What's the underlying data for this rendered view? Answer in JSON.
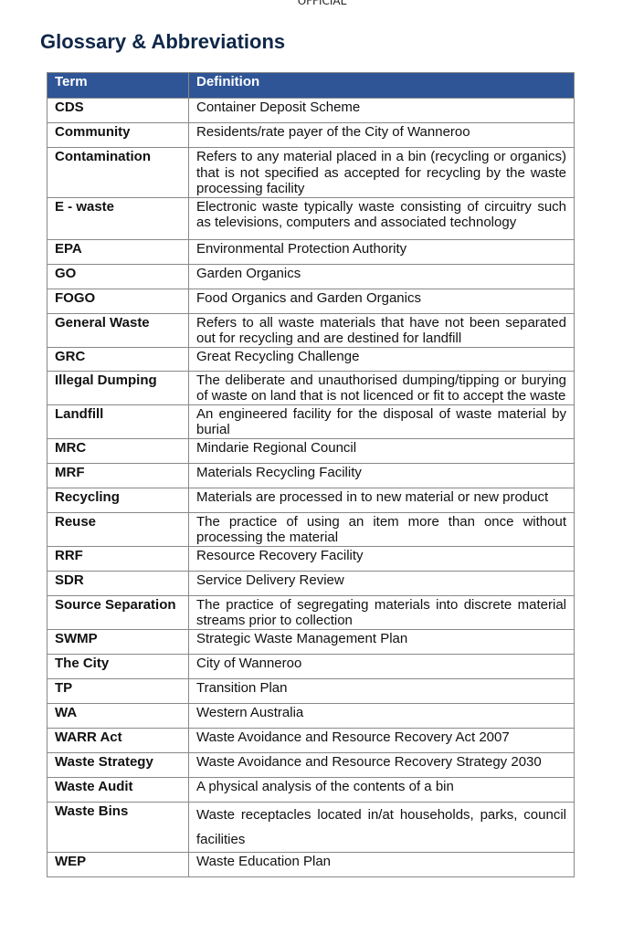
{
  "header": {
    "label": "OFFICIAL"
  },
  "page_title": "Glossary & Abbreviations",
  "table": {
    "columns": [
      "Term",
      "Definition"
    ],
    "rows": [
      {
        "term": "CDS",
        "definition": "Container Deposit Scheme"
      },
      {
        "term": "Community",
        "definition": "Residents/rate payer of the City of Wanneroo"
      },
      {
        "term": "Contamination",
        "definition": "Refers to any material placed in a bin (recycling or organics) that is not specified as accepted for recycling by the waste processing facility"
      },
      {
        "term": "E - waste",
        "definition": "Electronic waste typically waste consisting of circuitry such as televisions, computers and associated technology"
      },
      {
        "term": "EPA",
        "definition": "Environmental Protection Authority"
      },
      {
        "term": "GO",
        "definition": "Garden Organics"
      },
      {
        "term": "FOGO",
        "definition": "Food Organics and Garden Organics"
      },
      {
        "term": "General Waste",
        "definition": "Refers to all waste materials that have not been separated out for recycling and are destined for landfill"
      },
      {
        "term": "GRC",
        "definition": "Great Recycling Challenge"
      },
      {
        "term": "Illegal Dumping",
        "definition": "The deliberate and unauthorised dumping/tipping or burying of waste on land that is not licenced or fit to accept the waste"
      },
      {
        "term": "Landfill",
        "definition": "An engineered facility for the disposal of waste material by burial"
      },
      {
        "term": "MRC",
        "definition": "Mindarie Regional Council"
      },
      {
        "term": "MRF",
        "definition": "Materials Recycling Facility"
      },
      {
        "term": "Recycling",
        "definition": "Materials are processed in to new material or new product"
      },
      {
        "term": "Reuse",
        "definition": "The practice of using an item more than once without processing the material"
      },
      {
        "term": "RRF",
        "definition": "Resource Recovery Facility"
      },
      {
        "term": "SDR",
        "definition": "Service Delivery Review"
      },
      {
        "term": "Source Separation",
        "definition": "The practice of segregating materials into discrete material streams prior to collection"
      },
      {
        "term": "SWMP",
        "definition": "Strategic Waste Management Plan"
      },
      {
        "term": "The City",
        "definition": "City of Wanneroo"
      },
      {
        "term": "TP",
        "definition": "Transition Plan"
      },
      {
        "term": "WA",
        "definition": "Western Australia"
      },
      {
        "term": "WARR Act",
        "definition": "Waste Avoidance and Resource Recovery Act 2007"
      },
      {
        "term": "Waste Strategy",
        "definition": "Waste Avoidance and Resource Recovery Strategy 2030"
      },
      {
        "term": "Waste Audit",
        "definition": "A physical analysis of the contents of a bin"
      },
      {
        "term": "Waste Bins",
        "definition": "Waste receptacles located in/at households, parks, council facilities"
      },
      {
        "term": "WEP",
        "definition": "Waste Education Plan"
      }
    ]
  }
}
